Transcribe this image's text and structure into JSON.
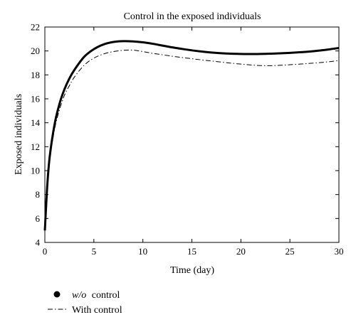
{
  "chart_data": {
    "type": "line",
    "title": "Control in the exposed individuals",
    "xlabel": "Time (day)",
    "ylabel": "Exposed individuals",
    "xlim": [
      0,
      30
    ],
    "ylim": [
      4,
      22
    ],
    "x_ticks": [
      0,
      5,
      10,
      15,
      20,
      25,
      30
    ],
    "y_ticks": [
      4,
      6,
      8,
      10,
      12,
      14,
      16,
      18,
      20,
      22
    ],
    "grid": false,
    "legend_position": "bottom-left, below plot",
    "series": [
      {
        "name": "w/o control",
        "legend_prefix": "w/o",
        "legend_suffix": "control",
        "style": "solid-thick",
        "color": "#000000",
        "x": [
          0,
          0.25,
          0.5,
          1,
          1.5,
          2,
          2.5,
          3,
          4,
          5,
          6,
          7,
          8,
          9,
          10,
          11,
          12,
          13,
          14,
          15,
          16,
          17,
          18,
          19,
          20,
          21,
          22,
          23,
          24,
          25,
          26,
          27,
          28,
          29,
          30
        ],
        "y": [
          5.0,
          8.8,
          11.2,
          13.9,
          15.6,
          16.8,
          17.7,
          18.4,
          19.5,
          20.15,
          20.55,
          20.75,
          20.82,
          20.8,
          20.72,
          20.6,
          20.45,
          20.3,
          20.17,
          20.05,
          19.95,
          19.87,
          19.81,
          19.77,
          19.75,
          19.74,
          19.75,
          19.77,
          19.8,
          19.84,
          19.89,
          19.95,
          20.03,
          20.13,
          20.25
        ]
      },
      {
        "name": "With control",
        "style": "dash-dot",
        "color": "#000000",
        "x": [
          0,
          0.25,
          0.5,
          1,
          1.5,
          2,
          2.5,
          3,
          4,
          5,
          6,
          7,
          8,
          9,
          10,
          11,
          12,
          13,
          14,
          15,
          16,
          17,
          18,
          19,
          20,
          21,
          22,
          23,
          24,
          25,
          26,
          27,
          28,
          29,
          30
        ],
        "y": [
          5.0,
          8.5,
          10.9,
          13.5,
          15.1,
          16.3,
          17.1,
          17.8,
          18.8,
          19.4,
          19.75,
          19.95,
          20.05,
          20.07,
          19.95,
          19.8,
          19.68,
          19.56,
          19.45,
          19.35,
          19.25,
          19.16,
          19.07,
          18.98,
          18.9,
          18.83,
          18.78,
          18.77,
          18.8,
          18.85,
          18.9,
          18.96,
          19.02,
          19.1,
          19.2
        ]
      }
    ]
  }
}
